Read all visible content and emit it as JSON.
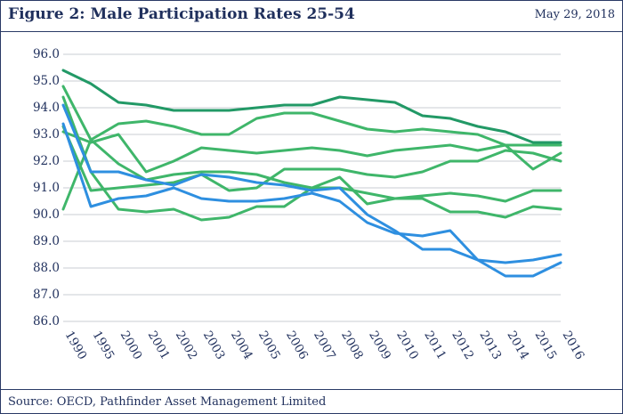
{
  "header": {
    "title": "Figure 2:  Male Participation Rates 25-54",
    "date": "May 29, 2018"
  },
  "footer": {
    "source": "Source: OECD, Pathfinder Asset Management Limited"
  },
  "chart_data": {
    "type": "line",
    "title": "Figure 2:  Male Participation Rates 25-54",
    "xlabel": "",
    "ylabel": "",
    "ylim": [
      86.0,
      96.0
    ],
    "ytick_step": 1.0,
    "grid": true,
    "legend": "none",
    "categories": [
      "1990",
      "1995",
      "2000",
      "2001",
      "2002",
      "2003",
      "2004",
      "2005",
      "2006",
      "2007",
      "2008",
      "2009",
      "2010",
      "2011",
      "2012",
      "2013",
      "2014",
      "2015",
      "2016"
    ],
    "series": [
      {
        "color": "#229966",
        "values": [
          95.4,
          94.9,
          94.2,
          94.1,
          93.9,
          93.9,
          93.9,
          94.0,
          94.1,
          94.1,
          94.4,
          94.3,
          94.2,
          93.7,
          93.6,
          93.3,
          93.1,
          92.7,
          92.7
        ]
      },
      {
        "color": "#3fb66a",
        "values": [
          94.8,
          92.8,
          93.4,
          93.5,
          93.3,
          93.0,
          93.0,
          93.6,
          93.8,
          93.8,
          93.5,
          93.2,
          93.1,
          93.2,
          93.1,
          93.0,
          92.6,
          92.6,
          92.6
        ]
      },
      {
        "color": "#3fb66a",
        "values": [
          93.1,
          92.7,
          93.0,
          91.6,
          92.0,
          92.5,
          92.4,
          92.3,
          92.4,
          92.5,
          92.4,
          92.2,
          92.4,
          92.5,
          92.6,
          92.4,
          92.6,
          91.7,
          92.3
        ]
      },
      {
        "color": "#3fb66a",
        "values": [
          90.2,
          92.8,
          91.9,
          91.3,
          91.5,
          91.6,
          91.6,
          91.5,
          91.2,
          91.0,
          91.0,
          90.8,
          90.6,
          90.7,
          90.8,
          90.7,
          90.5,
          90.9,
          90.9
        ]
      },
      {
        "color": "#3fb66a",
        "values": [
          94.4,
          91.6,
          90.2,
          90.1,
          90.2,
          89.8,
          89.9,
          90.3,
          90.3,
          91.0,
          91.4,
          90.4,
          90.6,
          90.6,
          90.1,
          90.1,
          89.9,
          90.3,
          90.2
        ]
      },
      {
        "color": "#3fb66a",
        "values": [
          93.3,
          90.9,
          91.0,
          91.1,
          91.2,
          91.5,
          90.9,
          91.0,
          91.7,
          91.7,
          91.7,
          91.5,
          91.4,
          91.6,
          92.0,
          92.0,
          92.4,
          92.3,
          92.0
        ]
      },
      {
        "color": "#2e8fe0",
        "values": [
          94.1,
          91.6,
          91.6,
          91.3,
          91.1,
          91.5,
          91.4,
          91.2,
          91.1,
          90.9,
          91.0,
          90.0,
          89.4,
          88.7,
          88.7,
          88.3,
          87.7,
          87.7,
          88.2
        ]
      },
      {
        "color": "#2e8fe0",
        "values": [
          93.4,
          90.3,
          90.6,
          90.7,
          91.0,
          90.6,
          90.5,
          90.5,
          90.6,
          90.8,
          90.5,
          89.7,
          89.3,
          89.2,
          89.4,
          88.3,
          88.2,
          88.3,
          88.5
        ]
      }
    ]
  }
}
